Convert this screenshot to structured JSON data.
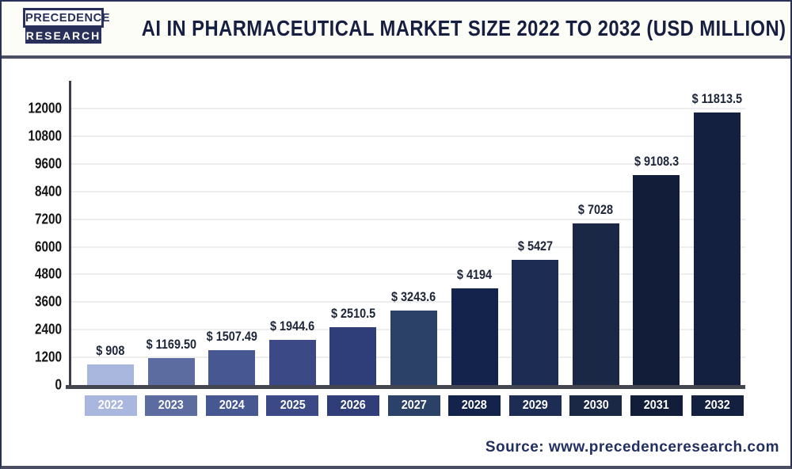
{
  "header": {
    "logo_line1": "PRECEDENCE",
    "logo_line2": "RESEARCH",
    "title": "AI IN PHARMACEUTICAL MARKET SIZE 2022 TO 2032 (USD MILLION)"
  },
  "footer": {
    "source": "Source: www.precedenceresearch.com"
  },
  "colors": {
    "navy_text": "#161f40",
    "logo_navy": "#28305a",
    "axis": "#3b3e46",
    "baseline": "#43464f",
    "gridline": "#ededed",
    "header_bg": "#fdfdf8",
    "source_text": "#223060"
  },
  "chart_data": {
    "type": "bar",
    "title": "AI in Pharmaceutical Market Size 2022 to 2032 (USD Million)",
    "xlabel": "",
    "ylabel": "",
    "categories": [
      "2022",
      "2023",
      "2024",
      "2025",
      "2026",
      "2027",
      "2028",
      "2029",
      "2030",
      "2031",
      "2032"
    ],
    "values": [
      908,
      1169.5,
      1507.49,
      1944.6,
      2510.5,
      3243.6,
      4194,
      5427,
      7028,
      9108.3,
      11813.5
    ],
    "value_labels": [
      "$ 908",
      "$ 1169.50",
      "$ 1507.49",
      "$ 1944.6",
      "$ 2510.5",
      "$ 3243.6",
      "$ 4194",
      "$ 5427",
      "$ 7028",
      "$ 9108.3",
      "$ 11813.5"
    ],
    "bar_colors": [
      "#a9b6de",
      "#5c6ca0",
      "#475791",
      "#3b4a87",
      "#2f3d79",
      "#2c4168",
      "#14234b",
      "#1c2c52",
      "#1a2745",
      "#111d39",
      "#13203f"
    ],
    "yticks": [
      0,
      1200,
      2400,
      3600,
      4800,
      6000,
      7200,
      8400,
      9600,
      10800,
      12000
    ],
    "ylim": [
      0,
      12000
    ],
    "grid": "horizontal",
    "legend": "none",
    "currency_unit": "USD Million"
  }
}
